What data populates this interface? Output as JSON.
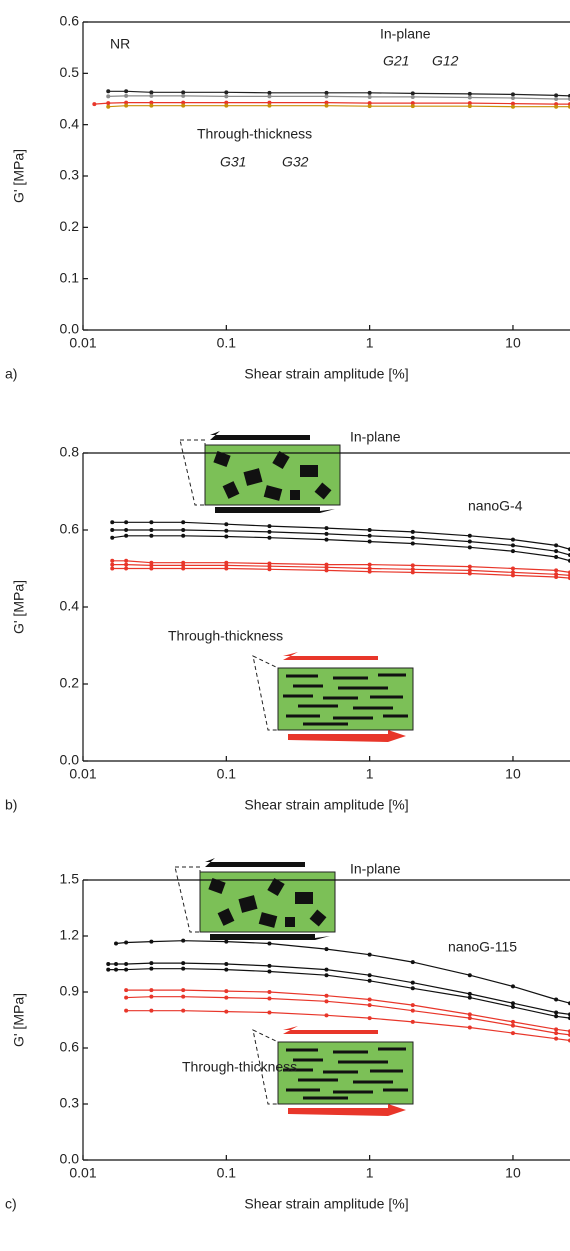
{
  "chart_data": [
    {
      "type": "line",
      "xscale": "log",
      "panel_label": "a)",
      "xlabel": "Shear strain amplitude [%]",
      "ylabel": "G' [MPa]",
      "annotations": [
        {
          "text": "NR",
          "color": "#222222"
        },
        {
          "text": "In-plane",
          "color": "#222222"
        },
        {
          "text": "Through-thickness",
          "color": "#e8362a"
        }
      ],
      "xlim": [
        0.01,
        25
      ],
      "ylim": [
        0,
        0.6
      ],
      "xticks": [
        0.01,
        0.1,
        1,
        10
      ],
      "yticks": [
        {
          "value": 0,
          "label": "0.0"
        },
        0.1,
        0.2,
        0.3,
        0.4,
        0.5,
        0.6
      ],
      "x": [
        0.012,
        0.015,
        0.02,
        0.03,
        0.05,
        0.1,
        0.2,
        0.5,
        1,
        2,
        5,
        10,
        20,
        25
      ],
      "series": [
        {
          "name": "G21",
          "color": "#222222",
          "values": [
            null,
            0.465,
            0.465,
            0.463,
            0.463,
            0.463,
            0.462,
            0.462,
            0.462,
            0.461,
            0.46,
            0.459,
            0.457,
            0.456
          ]
        },
        {
          "name": "G12",
          "color": "#8c8c8c",
          "values": [
            null,
            0.455,
            0.456,
            0.456,
            0.456,
            0.455,
            0.455,
            0.455,
            0.454,
            0.454,
            0.453,
            0.452,
            0.45,
            0.45
          ]
        },
        {
          "name": "G31",
          "color": "#e8362a",
          "values": [
            0.44,
            0.442,
            0.443,
            0.443,
            0.443,
            0.443,
            0.443,
            0.443,
            0.442,
            0.442,
            0.442,
            0.441,
            0.44,
            0.44
          ]
        },
        {
          "name": "G32",
          "color": "#c8900a",
          "values": [
            null,
            0.435,
            0.437,
            0.437,
            0.437,
            0.437,
            0.437,
            0.437,
            0.436,
            0.436,
            0.436,
            0.435,
            0.435,
            0.435
          ]
        }
      ]
    },
    {
      "type": "line",
      "xscale": "log",
      "panel_label": "b)",
      "xlabel": "Shear strain amplitude [%]",
      "ylabel": "G' [MPa]",
      "annotations": [
        {
          "text": "In-plane",
          "color": "#222222"
        },
        {
          "text": "nanoG-4",
          "color": "#222222"
        },
        {
          "text": "Through-thickness",
          "color": "#e8362a"
        }
      ],
      "xlim": [
        0.01,
        25
      ],
      "ylim": [
        0,
        0.8
      ],
      "xticks": [
        0.01,
        0.1,
        1,
        10
      ],
      "yticks": [
        {
          "value": 0,
          "label": "0.0"
        },
        0.2,
        0.4,
        0.6,
        0.8
      ],
      "x": [
        0.016,
        0.02,
        0.03,
        0.05,
        0.1,
        0.2,
        0.5,
        1,
        2,
        5,
        10,
        20,
        25
      ],
      "series": [
        {
          "color": "#111111",
          "values": [
            0.62,
            0.62,
            0.62,
            0.62,
            0.615,
            0.61,
            0.605,
            0.6,
            0.595,
            0.585,
            0.575,
            0.56,
            0.55
          ]
        },
        {
          "color": "#111111",
          "values": [
            0.6,
            0.6,
            0.6,
            0.6,
            0.598,
            0.595,
            0.59,
            0.585,
            0.58,
            0.57,
            0.56,
            0.545,
            0.535
          ]
        },
        {
          "color": "#111111",
          "values": [
            0.58,
            0.585,
            0.585,
            0.585,
            0.583,
            0.58,
            0.575,
            0.57,
            0.565,
            0.555,
            0.545,
            0.53,
            0.52
          ]
        },
        {
          "color": "#e8362a",
          "values": [
            0.52,
            0.52,
            0.515,
            0.515,
            0.515,
            0.513,
            0.51,
            0.51,
            0.508,
            0.505,
            0.5,
            0.495,
            0.49
          ]
        },
        {
          "color": "#e8362a",
          "values": [
            0.51,
            0.51,
            0.508,
            0.508,
            0.508,
            0.506,
            0.503,
            0.5,
            0.498,
            0.495,
            0.49,
            0.485,
            0.482
          ]
        },
        {
          "color": "#e8362a",
          "values": [
            0.5,
            0.5,
            0.5,
            0.5,
            0.5,
            0.498,
            0.495,
            0.492,
            0.49,
            0.487,
            0.482,
            0.478,
            0.475
          ]
        }
      ]
    },
    {
      "type": "line",
      "xscale": "log",
      "panel_label": "c)",
      "xlabel": "Shear strain amplitude [%]",
      "ylabel": "G' [MPa]",
      "annotations": [
        {
          "text": "In-plane",
          "color": "#222222"
        },
        {
          "text": "nanoG-115",
          "color": "#222222"
        },
        {
          "text": "Through-thickness",
          "color": "#e8362a"
        }
      ],
      "xlim": [
        0.01,
        25
      ],
      "ylim": [
        0,
        1.5
      ],
      "xticks": [
        0.01,
        0.1,
        1,
        10
      ],
      "yticks": [
        {
          "value": 0,
          "label": "0.0"
        },
        0.3,
        0.6,
        0.9,
        1.2,
        1.5
      ],
      "x": [
        0.015,
        0.017,
        0.02,
        0.03,
        0.05,
        0.1,
        0.2,
        0.5,
        1,
        2,
        5,
        10,
        20,
        25
      ],
      "series": [
        {
          "color": "#111111",
          "values": [
            null,
            1.16,
            1.165,
            1.17,
            1.175,
            1.17,
            1.16,
            1.13,
            1.1,
            1.06,
            0.99,
            0.93,
            0.86,
            0.84
          ]
        },
        {
          "color": "#111111",
          "values": [
            1.05,
            1.05,
            1.05,
            1.055,
            1.055,
            1.05,
            1.04,
            1.02,
            0.99,
            0.95,
            0.89,
            0.84,
            0.79,
            0.78
          ]
        },
        {
          "color": "#111111",
          "values": [
            1.02,
            1.02,
            1.02,
            1.025,
            1.025,
            1.02,
            1.01,
            0.99,
            0.96,
            0.92,
            0.87,
            0.82,
            0.77,
            0.76
          ]
        },
        {
          "color": "#e8362a",
          "values": [
            null,
            null,
            0.91,
            0.91,
            0.91,
            0.905,
            0.9,
            0.88,
            0.86,
            0.83,
            0.78,
            0.74,
            0.7,
            0.69
          ]
        },
        {
          "color": "#e8362a",
          "values": [
            null,
            null,
            0.87,
            0.875,
            0.875,
            0.87,
            0.865,
            0.85,
            0.83,
            0.8,
            0.76,
            0.72,
            0.68,
            0.67
          ]
        },
        {
          "color": "#e8362a",
          "values": [
            null,
            null,
            0.8,
            0.8,
            0.8,
            0.795,
            0.79,
            0.775,
            0.76,
            0.74,
            0.71,
            0.68,
            0.65,
            0.64
          ]
        }
      ]
    }
  ]
}
